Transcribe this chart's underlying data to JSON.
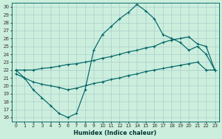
{
  "xlabel": "Humidex (Indice chaleur)",
  "background_color": "#cceedd",
  "grid_color": "#aacccc",
  "line_color": "#006666",
  "xlim": [
    -0.5,
    23.5
  ],
  "ylim": [
    15.5,
    30.5
  ],
  "xticks": [
    0,
    1,
    2,
    3,
    4,
    5,
    6,
    7,
    8,
    9,
    10,
    11,
    12,
    13,
    14,
    15,
    16,
    17,
    18,
    19,
    20,
    21,
    22,
    23
  ],
  "yticks": [
    16,
    17,
    18,
    19,
    20,
    21,
    22,
    23,
    24,
    25,
    26,
    27,
    28,
    29,
    30
  ],
  "curve1_x": [
    0,
    1,
    2,
    3,
    4,
    5,
    6,
    7,
    8,
    9,
    10,
    11,
    12,
    13,
    14,
    15,
    16,
    17,
    18,
    19,
    20,
    21,
    22,
    23
  ],
  "curve1_y": [
    22.0,
    21.0,
    19.5,
    18.5,
    17.5,
    16.5,
    16.0,
    16.5,
    19.5,
    24.5,
    26.5,
    27.5,
    28.5,
    29.3,
    30.3,
    29.5,
    28.5,
    26.5,
    26.0,
    25.5,
    24.5,
    25.0,
    24.0,
    22.0
  ],
  "curve2_x": [
    0,
    1,
    2,
    3,
    4,
    5,
    6,
    7,
    8,
    9,
    10,
    11,
    12,
    13,
    14,
    15,
    16,
    17,
    18,
    19,
    20,
    21,
    22,
    23
  ],
  "curve2_y": [
    22.0,
    22.0,
    22.0,
    22.2,
    22.3,
    22.5,
    22.7,
    22.8,
    23.0,
    23.2,
    23.5,
    23.7,
    24.0,
    24.3,
    24.5,
    24.8,
    25.0,
    25.5,
    25.8,
    26.0,
    26.2,
    25.3,
    25.0,
    22.0
  ],
  "curve3_x": [
    0,
    1,
    2,
    3,
    4,
    5,
    6,
    7,
    8,
    9,
    10,
    11,
    12,
    13,
    14,
    15,
    16,
    17,
    18,
    19,
    20,
    21,
    22,
    23
  ],
  "curve3_y": [
    21.5,
    21.0,
    20.5,
    20.2,
    20.0,
    19.8,
    19.5,
    19.7,
    20.0,
    20.3,
    20.5,
    20.8,
    21.0,
    21.3,
    21.5,
    21.8,
    22.0,
    22.2,
    22.4,
    22.6,
    22.8,
    23.0,
    22.0,
    22.0
  ]
}
